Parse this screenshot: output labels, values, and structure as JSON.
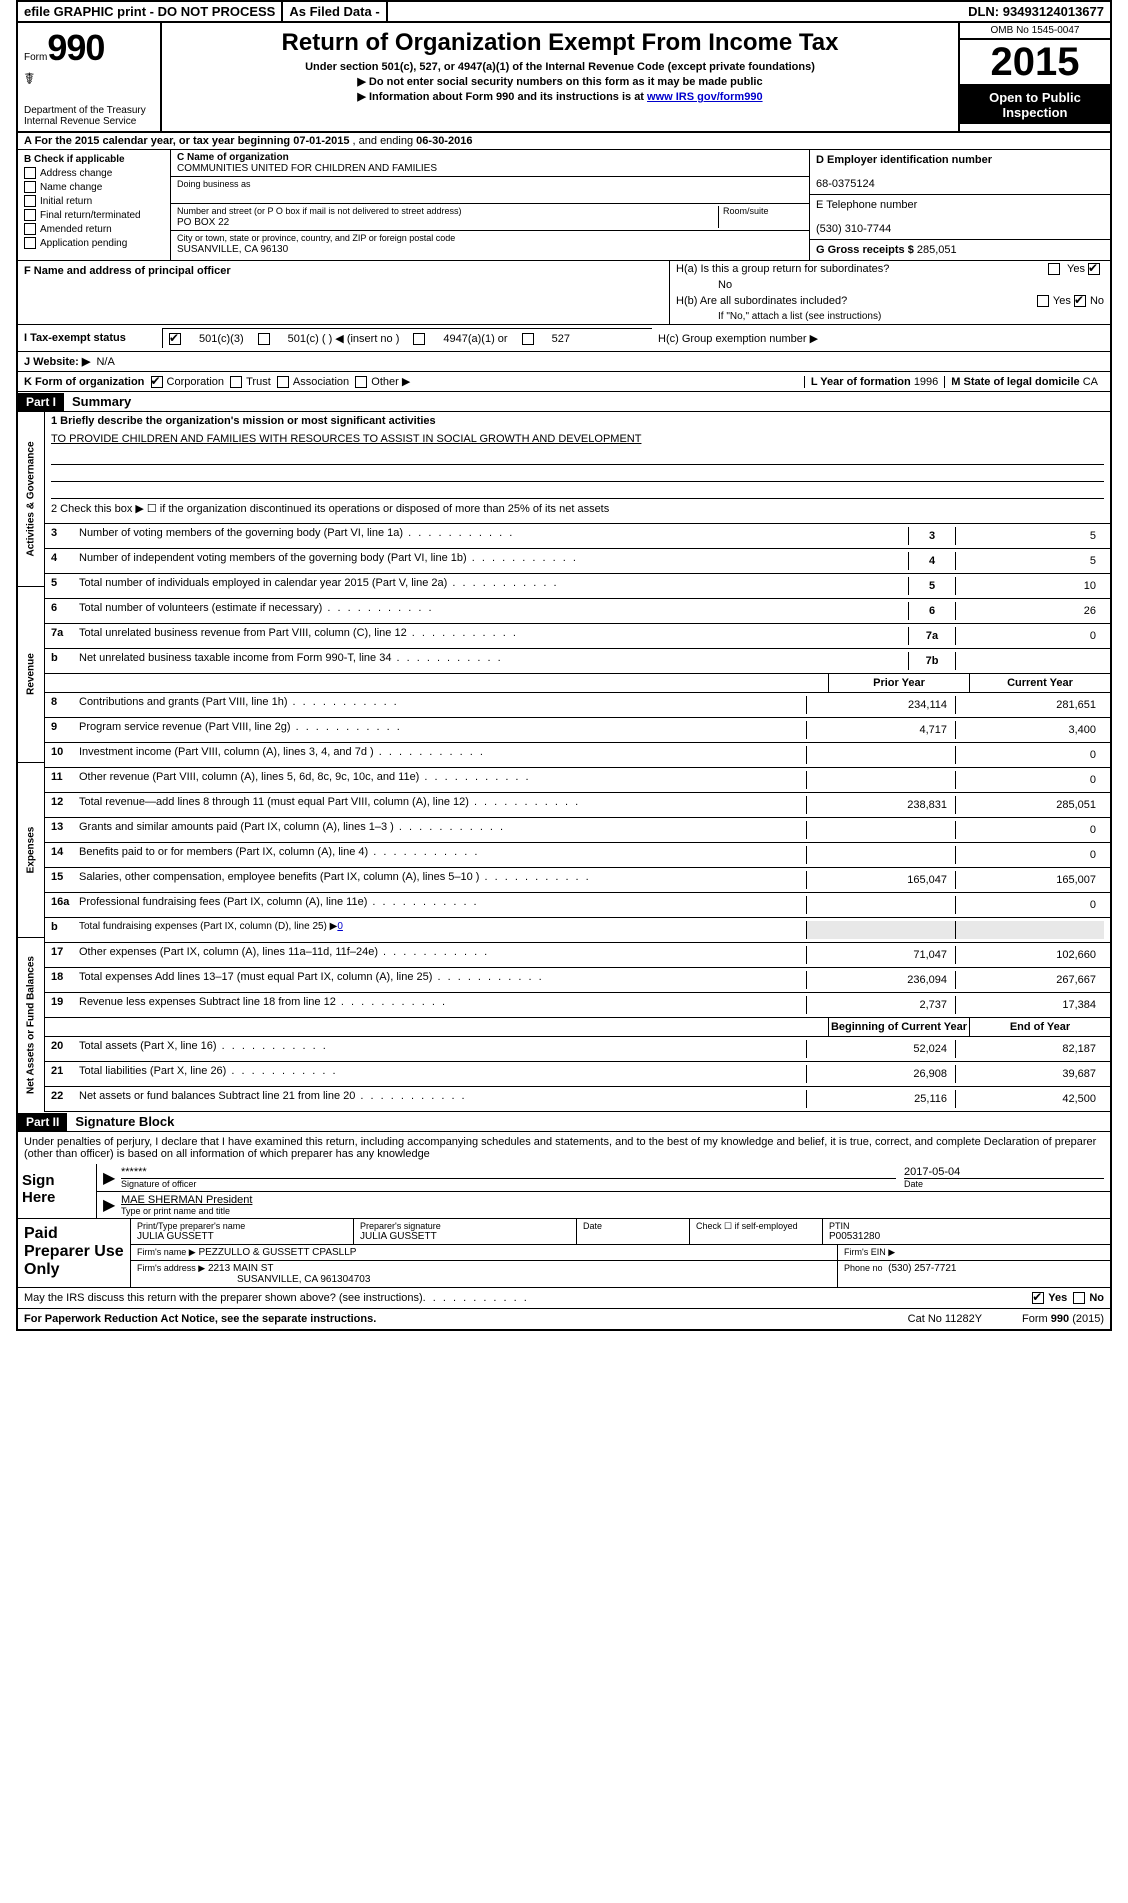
{
  "top_bar": {
    "efile": "efile GRAPHIC print - DO NOT PROCESS",
    "asfiled": "As Filed Data -",
    "dln_label": "DLN:",
    "dln": "93493124013677"
  },
  "header": {
    "form_prefix": "Form",
    "form_no": "990",
    "dept": "Department of the Treasury",
    "irs": "Internal Revenue Service",
    "title": "Return of Organization Exempt From Income Tax",
    "sub1": "Under section 501(c), 527, or 4947(a)(1) of the Internal Revenue Code (except private foundations)",
    "sub2": "▶ Do not enter social security numbers on this form as it may be made public",
    "sub3_pre": "▶ Information about Form 990 and its instructions is at ",
    "sub3_link": "www IRS gov/form990",
    "omb": "OMB No 1545-0047",
    "year": "2015",
    "inspect1": "Open to Public",
    "inspect2": "Inspection"
  },
  "row_a_pre": "A  For the 2015 calendar year, or tax year beginning ",
  "row_a_begin": "07-01-2015",
  "row_a_mid": " , and ending ",
  "row_a_end": "06-30-2016",
  "sec_b": {
    "header": "B  Check if applicable",
    "opts": [
      "Address change",
      "Name change",
      "Initial return",
      "Final return/terminated",
      "Amended return",
      "Application pending"
    ],
    "c_label": "C Name of organization",
    "c_name": "COMMUNITIES UNITED FOR CHILDREN AND FAMILIES",
    "dba_label": "Doing business as",
    "addr_label": "Number and street (or P O box if mail is not delivered to street address)",
    "room_label": "Room/suite",
    "addr": "PO BOX 22",
    "city_label": "City or town, state or province, country, and ZIP or foreign postal code",
    "city": "SUSANVILLE, CA  96130",
    "d_label": "D Employer identification number",
    "d_val": "68-0375124",
    "e_label": "E Telephone number",
    "e_val": "(530) 310-7744",
    "g_label": "G Gross receipts $",
    "g_val": "285,051"
  },
  "f_label": "F  Name and address of principal officer",
  "h": {
    "a_label": "H(a)  Is this a group return for subordinates?",
    "a_no": "No",
    "b_label": "H(b)  Are all subordinates included?",
    "b_note": "If \"No,\" attach a list  (see instructions)",
    "c_label": "H(c)  Group exemption number ▶"
  },
  "i_label": "I    Tax-exempt status",
  "i_opts": {
    "a": "501(c)(3)",
    "b": "501(c) (  ) ◀ (insert no )",
    "c": "4947(a)(1) or",
    "d": "527"
  },
  "j_label": "J   Website: ▶",
  "j_val": "N/A",
  "k_label": "K Form of organization",
  "k_opts": [
    "Corporation",
    "Trust",
    "Association",
    "Other ▶"
  ],
  "l_label": "L Year of formation",
  "l_val": "1996",
  "m_label": "M State of legal domicile",
  "m_val": "CA",
  "part1": {
    "label": "Part I",
    "title": "Summary",
    "line1_label": "1 Briefly describe the organization's mission or most significant activities",
    "mission": "TO PROVIDE CHILDREN AND FAMILIES WITH RESOURCES TO ASSIST IN SOCIAL GROWTH AND DEVELOPMENT",
    "line2": "2  Check this box ▶ ☐ if the organization discontinued its operations or disposed of more than 25% of its net assets",
    "tabs": [
      "Activities & Governance",
      "Revenue",
      "Expenses",
      "Net Assets or Fund Balances"
    ],
    "lines_single": [
      {
        "n": "3",
        "d": "Number of voting members of the governing body (Part VI, line 1a)",
        "b": "3",
        "v": "5"
      },
      {
        "n": "4",
        "d": "Number of independent voting members of the governing body (Part VI, line 1b)",
        "b": "4",
        "v": "5"
      },
      {
        "n": "5",
        "d": "Total number of individuals employed in calendar year 2015 (Part V, line 2a)",
        "b": "5",
        "v": "10"
      },
      {
        "n": "6",
        "d": "Total number of volunteers (estimate if necessary)",
        "b": "6",
        "v": "26"
      },
      {
        "n": "7a",
        "d": "Total unrelated business revenue from Part VIII, column (C), line 12",
        "b": "7a",
        "v": "0"
      },
      {
        "n": "b",
        "d": "Net unrelated business taxable income from Form 990-T, line 34",
        "b": "7b",
        "v": ""
      }
    ],
    "hdr_prior": "Prior Year",
    "hdr_current": "Current Year",
    "rev_lines": [
      {
        "n": "8",
        "d": "Contributions and grants (Part VIII, line 1h)",
        "p": "234,114",
        "c": "281,651"
      },
      {
        "n": "9",
        "d": "Program service revenue (Part VIII, line 2g)",
        "p": "4,717",
        "c": "3,400"
      },
      {
        "n": "10",
        "d": "Investment income (Part VIII, column (A), lines 3, 4, and 7d )",
        "p": "",
        "c": "0"
      },
      {
        "n": "11",
        "d": "Other revenue (Part VIII, column (A), lines 5, 6d, 8c, 9c, 10c, and 11e)",
        "p": "",
        "c": "0"
      },
      {
        "n": "12",
        "d": "Total revenue—add lines 8 through 11 (must equal Part VIII, column (A), line 12)",
        "p": "238,831",
        "c": "285,051"
      }
    ],
    "exp_lines": [
      {
        "n": "13",
        "d": "Grants and similar amounts paid (Part IX, column (A), lines 1–3 )",
        "p": "",
        "c": "0"
      },
      {
        "n": "14",
        "d": "Benefits paid to or for members (Part IX, column (A), line 4)",
        "p": "",
        "c": "0"
      },
      {
        "n": "15",
        "d": "Salaries, other compensation, employee benefits (Part IX, column (A), lines 5–10 )",
        "p": "165,047",
        "c": "165,007"
      },
      {
        "n": "16a",
        "d": "Professional fundraising fees (Part IX, column (A), line 11e)",
        "p": "",
        "c": "0"
      },
      {
        "n": "b",
        "d": "Total fundraising expenses (Part IX, column (D), line 25) ▶",
        "p": "__blank__",
        "c": "__blank__",
        "fund": "0"
      },
      {
        "n": "17",
        "d": "Other expenses (Part IX, column (A), lines 11a–11d, 11f–24e)",
        "p": "71,047",
        "c": "102,660"
      },
      {
        "n": "18",
        "d": "Total expenses  Add lines 13–17 (must equal Part IX, column (A), line 25)",
        "p": "236,094",
        "c": "267,667"
      },
      {
        "n": "19",
        "d": "Revenue less expenses  Subtract line 18 from line 12",
        "p": "2,737",
        "c": "17,384"
      }
    ],
    "hdr_begin": "Beginning of Current Year",
    "hdr_end": "End of Year",
    "net_lines": [
      {
        "n": "20",
        "d": "Total assets (Part X, line 16)",
        "p": "52,024",
        "c": "82,187"
      },
      {
        "n": "21",
        "d": "Total liabilities (Part X, line 26)",
        "p": "26,908",
        "c": "39,687"
      },
      {
        "n": "22",
        "d": "Net assets or fund balances  Subtract line 21 from line 20",
        "p": "25,116",
        "c": "42,500"
      }
    ]
  },
  "part2": {
    "label": "Part II",
    "title": "Signature Block",
    "decl": "Under penalties of perjury, I declare that I have examined this return, including accompanying schedules and statements, and to the best of my knowledge and belief, it is true, correct, and complete  Declaration of preparer (other than officer) is based on all information of which preparer has any knowledge",
    "sign_here": "Sign Here",
    "stars": "******",
    "sig_of_officer": "Signature of officer",
    "sig_date": "2017-05-04",
    "date_label": "Date",
    "officer_name": "MAE SHERMAN President",
    "type_name_label": "Type or print name and title",
    "paid": "Paid Preparer Use Only",
    "prep_name_label": "Print/Type preparer's name",
    "prep_name": "JULIA GUSSETT",
    "prep_sig_label": "Preparer's signature",
    "prep_sig": "JULIA GUSSETT",
    "prep_date_label": "Date",
    "self_emp": "Check ☐ if self-employed",
    "ptin_label": "PTIN",
    "ptin": "P00531280",
    "firm_name_label": "Firm's name    ▶",
    "firm_name": "PEZZULLO & GUSSETT CPASLLP",
    "firm_ein_label": "Firm's EIN ▶",
    "firm_addr_label": "Firm's address ▶",
    "firm_addr1": "2213 MAIN ST",
    "firm_addr2": "SUSANVILLE, CA  961304703",
    "phone_label": "Phone no",
    "phone": "(530) 257-7721",
    "may_irs": "May the IRS discuss this return with the preparer shown above? (see instructions)",
    "yes": "Yes",
    "no": "No"
  },
  "footer": {
    "paperwork": "For Paperwork Reduction Act Notice, see the separate instructions.",
    "catno": "Cat No  11282Y",
    "formno": "Form 990 (2015)"
  }
}
